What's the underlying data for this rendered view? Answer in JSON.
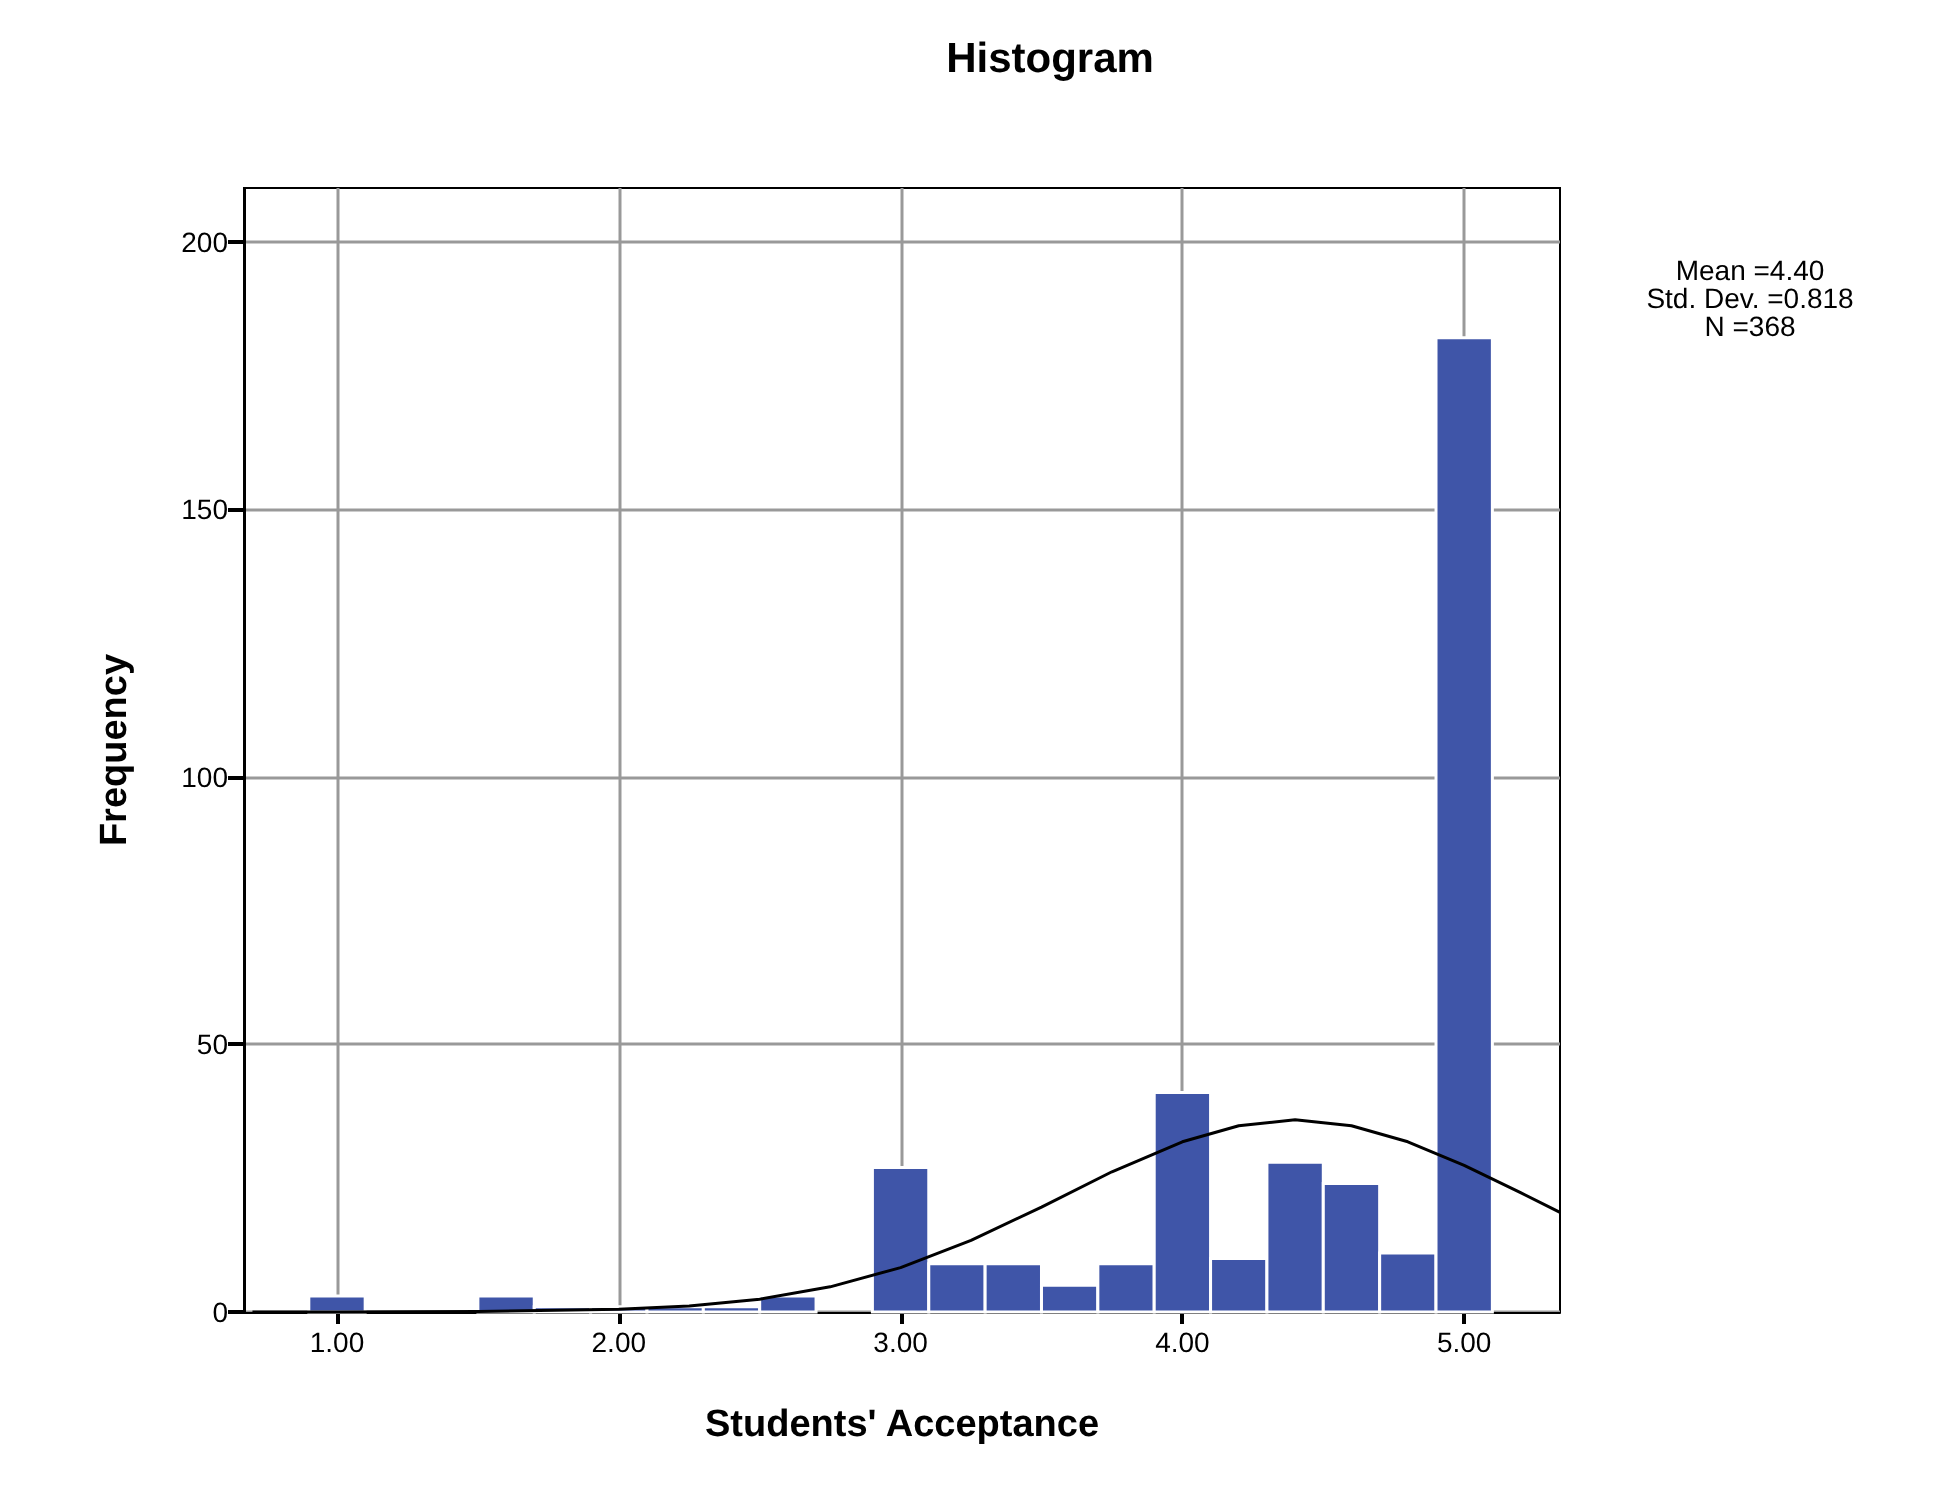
{
  "chart_data": {
    "type": "histogram",
    "title": "Histogram",
    "xlabel": "Students' Acceptance",
    "ylabel": "Frequency",
    "bins": [
      0.9,
      1.1,
      1.3,
      1.5,
      1.7,
      1.9,
      2.1,
      2.3,
      2.5,
      2.7,
      2.9,
      3.1,
      3.3,
      3.5,
      3.7,
      3.9,
      4.1,
      4.3,
      4.5,
      4.7,
      4.9,
      5.1
    ],
    "values": [
      3,
      0,
      0,
      3,
      1,
      1,
      1,
      1,
      3,
      0,
      27,
      9,
      9,
      5,
      9,
      41,
      10,
      28,
      24,
      11,
      182
    ],
    "color": "#3f55a8",
    "series": [
      {
        "type": "line",
        "color": "#000000",
        "x": [
          0.7,
          1.0,
          1.5,
          2.0,
          2.25,
          2.5,
          2.75,
          3.0,
          3.25,
          3.5,
          3.75,
          4.0,
          4.2,
          4.4,
          4.6,
          4.8,
          5.0,
          5.2,
          5.34
        ],
        "values": [
          0,
          0,
          0.1,
          0.5,
          1.1,
          2.4,
          4.7,
          8.3,
          13.4,
          19.6,
          26.2,
          31.8,
          34.8,
          35.9,
          34.8,
          31.8,
          27.4,
          22.3,
          18.6
        ]
      }
    ],
    "marker": "none",
    "xlim": [
      0.67,
      5.34
    ],
    "xticks": [
      {
        "value": 1,
        "label": "1.00"
      },
      {
        "value": 2,
        "label": "2.00"
      },
      {
        "value": 3,
        "label": "3.00"
      },
      {
        "value": 4,
        "label": "4.00"
      },
      {
        "value": 5,
        "label": "5.00"
      }
    ],
    "ylim": [
      0,
      210
    ],
    "yticks": [
      0,
      50,
      100,
      150,
      200
    ],
    "grid": true,
    "annotations": [
      "Mean =4.40",
      "Std. Dev. =0.818",
      "N =368"
    ]
  }
}
